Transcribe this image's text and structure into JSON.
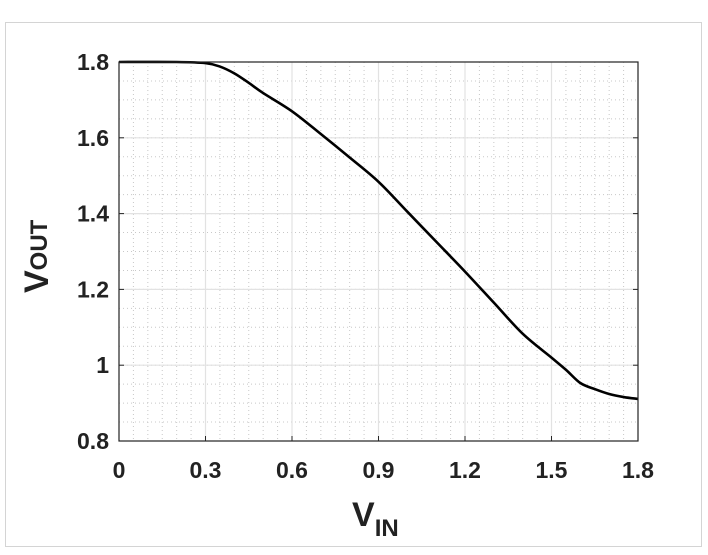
{
  "chart_data": {
    "type": "line",
    "xlabel": {
      "main": "V",
      "sub": "IN"
    },
    "ylabel": {
      "main": "V",
      "sub": "OUT"
    },
    "xlim": [
      0,
      1.8
    ],
    "ylim": [
      0.8,
      1.8
    ],
    "xticks": [
      0,
      0.3,
      0.6,
      0.9,
      1.2,
      1.5,
      1.8
    ],
    "xtick_labels": [
      "0",
      "0.3",
      "0.6",
      "0.9",
      "1.2",
      "1.5",
      "1.8"
    ],
    "yticks": [
      0.8,
      1,
      1.2,
      1.4,
      1.6,
      1.8
    ],
    "ytick_labels": [
      "0.8",
      "1",
      "1.2",
      "1.4",
      "1.6",
      "1.8"
    ],
    "grid": true,
    "minor_grid": true,
    "line_color": "#000000",
    "series": [
      {
        "x": [
          0,
          0.2,
          0.3,
          0.35,
          0.4,
          0.45,
          0.5,
          0.6,
          0.7,
          0.8,
          0.9,
          1.0,
          1.1,
          1.2,
          1.3,
          1.4,
          1.5,
          1.55,
          1.6,
          1.65,
          1.7,
          1.75,
          1.8
        ],
        "y": [
          1.8,
          1.8,
          1.797,
          1.788,
          1.77,
          1.745,
          1.718,
          1.67,
          1.61,
          1.548,
          1.484,
          1.405,
          1.326,
          1.247,
          1.165,
          1.083,
          1.02,
          0.988,
          0.953,
          0.937,
          0.924,
          0.916,
          0.911
        ]
      }
    ]
  }
}
